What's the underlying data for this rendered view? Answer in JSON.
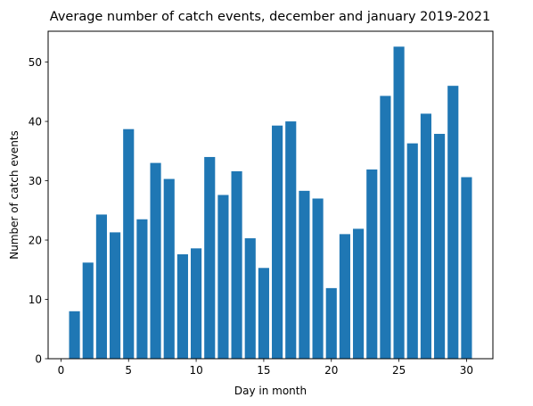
{
  "chart_data": {
    "type": "bar",
    "title": "Average number of catch events, december and january 2019-2021",
    "xlabel": "Day in month",
    "ylabel": "Number of catch events",
    "x": [
      1,
      2,
      3,
      4,
      5,
      6,
      7,
      8,
      9,
      10,
      11,
      12,
      13,
      14,
      15,
      16,
      17,
      18,
      19,
      20,
      21,
      22,
      23,
      24,
      25,
      26,
      27,
      28,
      29,
      30
    ],
    "values": [
      8.0,
      16.2,
      24.3,
      21.3,
      38.7,
      23.5,
      33.0,
      30.3,
      17.6,
      18.6,
      34.0,
      27.6,
      31.6,
      20.3,
      15.3,
      39.3,
      40.0,
      28.3,
      27.0,
      11.9,
      21.0,
      21.9,
      31.9,
      44.3,
      52.6,
      36.3,
      41.3,
      37.9,
      46.0,
      30.6
    ],
    "xlim": [
      -0.95,
      31.95
    ],
    "ylim": [
      0,
      55.2
    ],
    "xticks": [
      0,
      5,
      10,
      15,
      20,
      25,
      30
    ],
    "yticks": [
      0,
      10,
      20,
      30,
      40,
      50
    ],
    "bar_width": 0.8,
    "bar_color": "#1f77b4",
    "grid": false,
    "legend": "none"
  }
}
